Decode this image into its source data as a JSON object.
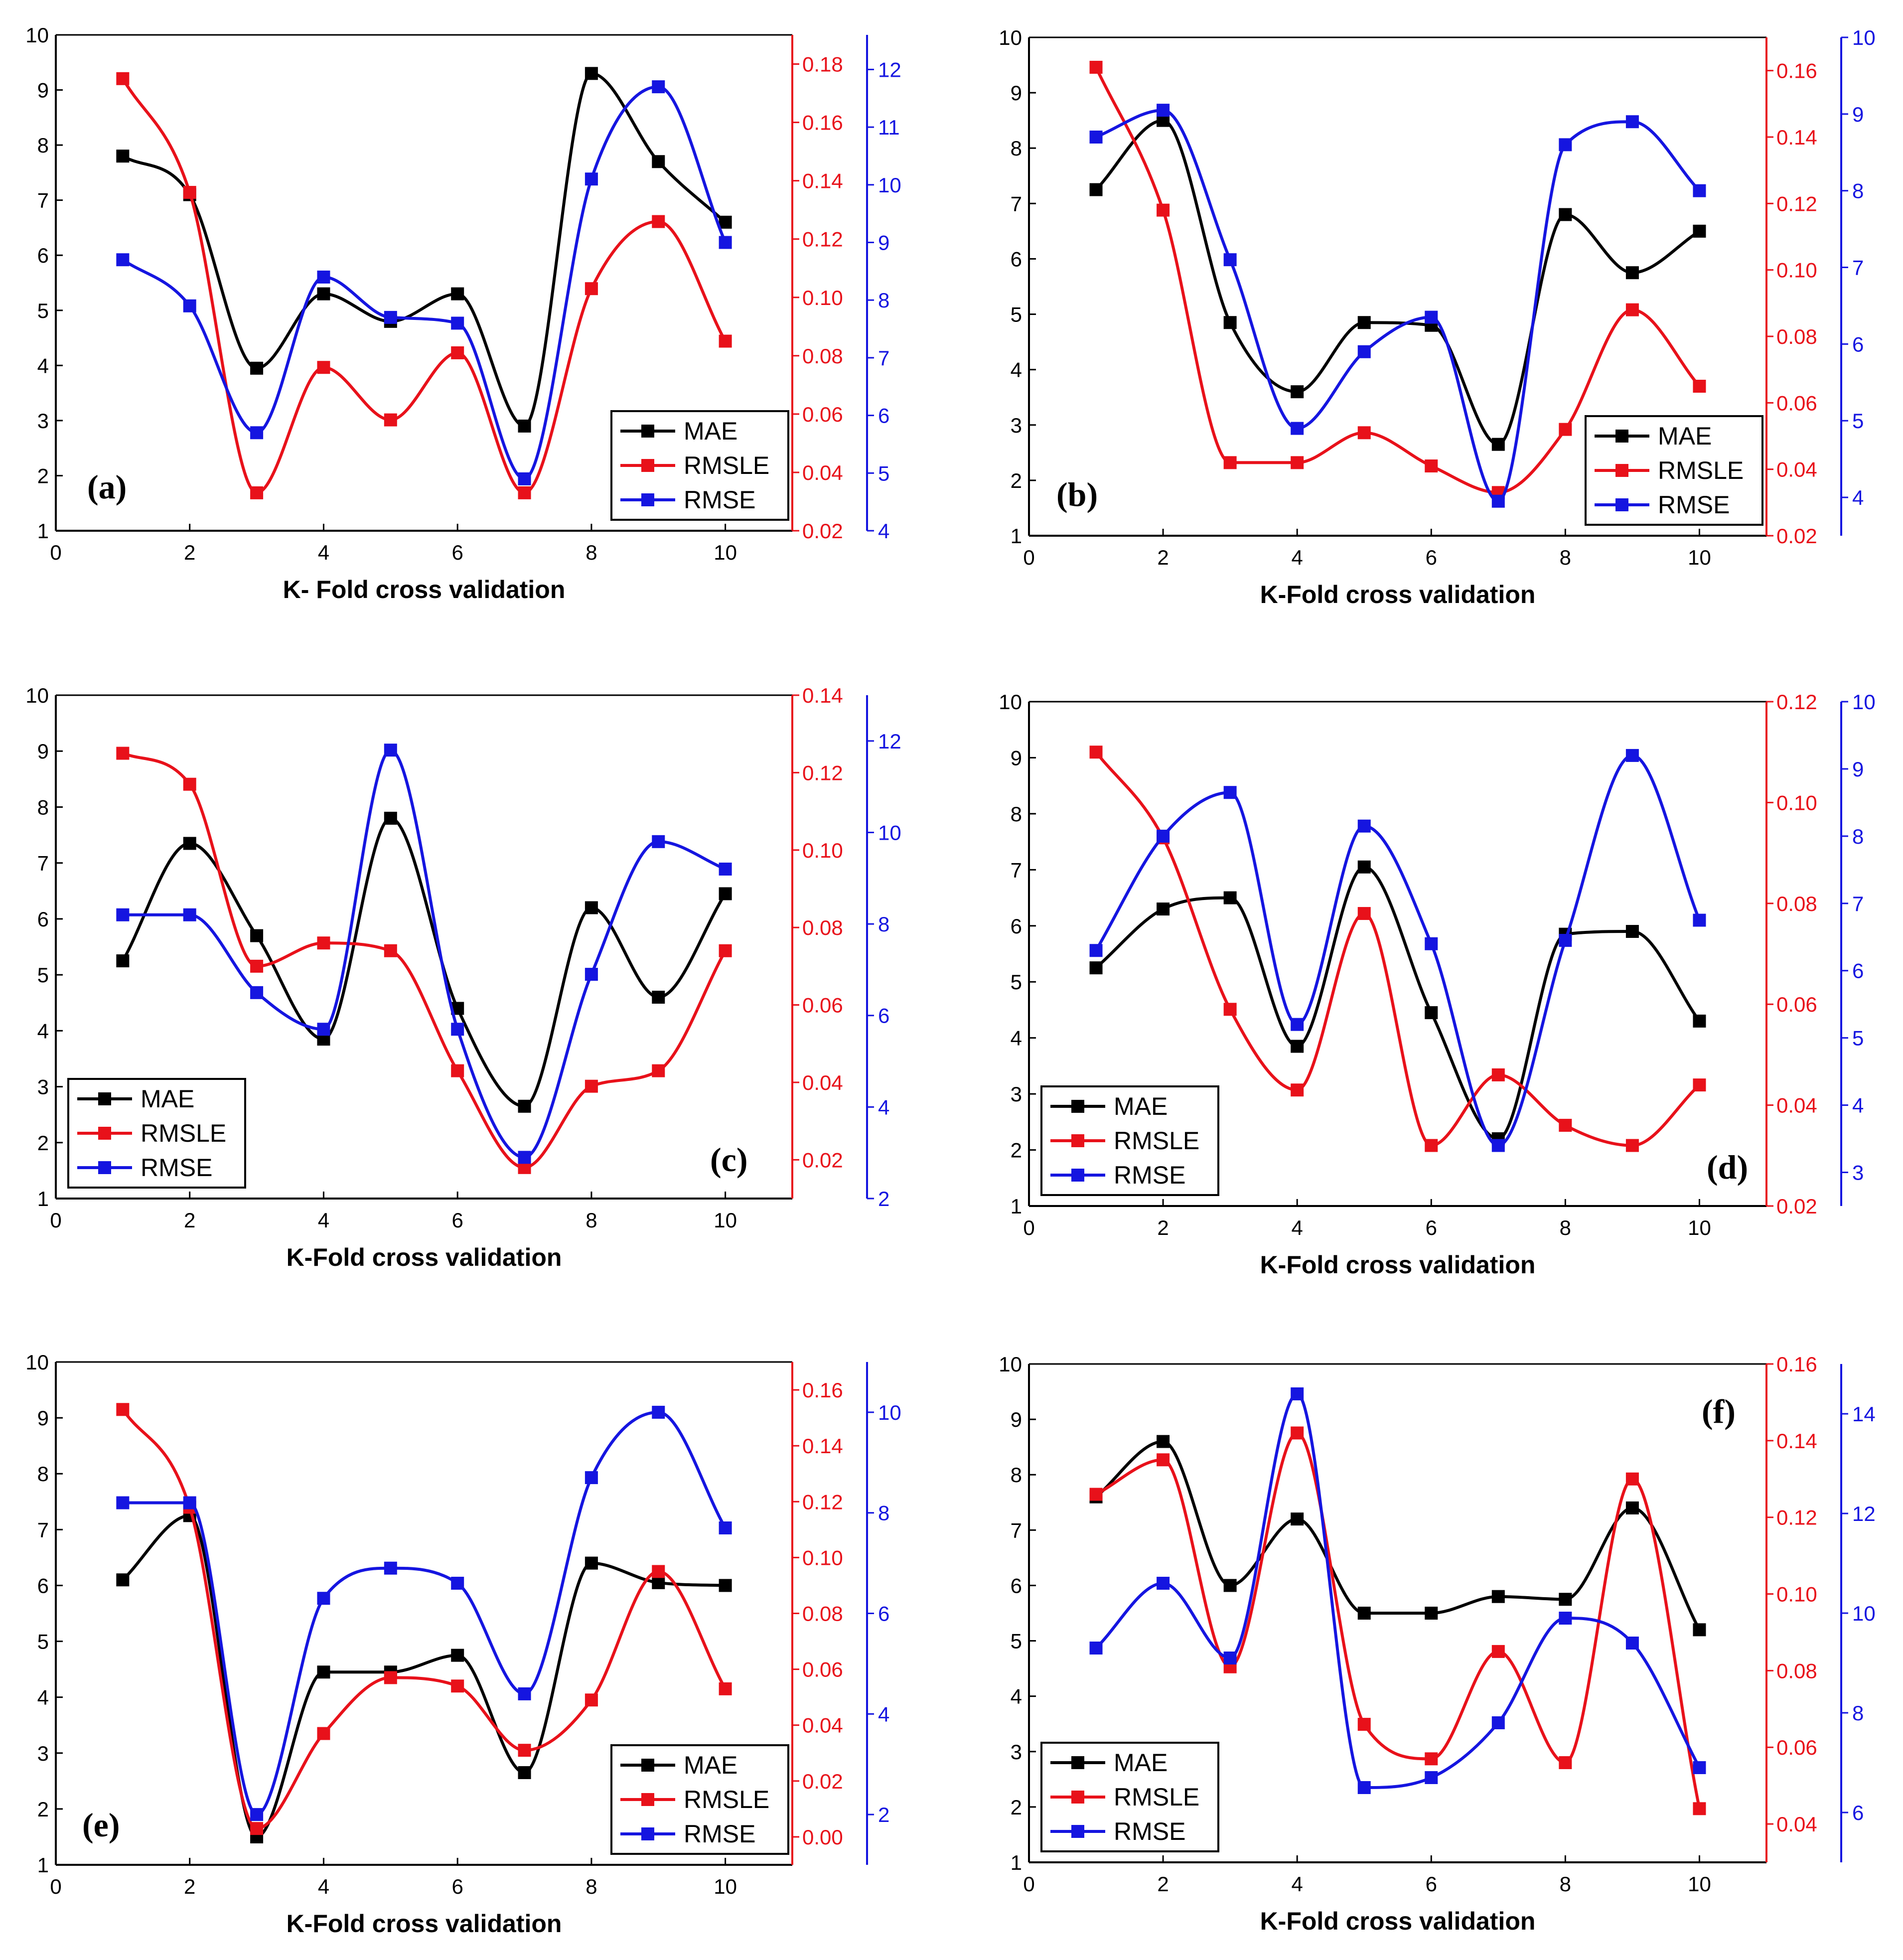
{
  "colors": {
    "MAE": "#000000",
    "RMSLE": "#e8111a",
    "RMSE": "#1515e0"
  },
  "chart_data": [
    {
      "type": "line",
      "panel_label": "(a)",
      "xlabel": "K- Fold cross validation",
      "x": [
        1,
        2,
        3,
        4,
        5,
        6,
        7,
        8,
        9,
        10
      ],
      "x_ticks": [
        "0",
        "2",
        "4",
        "6",
        "8",
        "10"
      ],
      "xlim": [
        0,
        11
      ],
      "legend_position": "bottom-right",
      "axes": {
        "left": {
          "series": "MAE",
          "lim": [
            1,
            10
          ],
          "ticks": [
            "1",
            "2",
            "3",
            "4",
            "5",
            "6",
            "7",
            "8",
            "9",
            "10"
          ]
        },
        "right1": {
          "series": "RMSLE",
          "lim": [
            0.02,
            0.19
          ],
          "ticks": [
            "0.02",
            "0.04",
            "0.06",
            "0.08",
            "0.10",
            "0.12",
            "0.14",
            "0.16",
            "0.18"
          ]
        },
        "right2": {
          "series": "RMSE",
          "lim": [
            4,
            12.6
          ],
          "ticks": [
            "4",
            "5",
            "6",
            "7",
            "8",
            "9",
            "10",
            "11",
            "12"
          ]
        }
      },
      "series": [
        {
          "name": "MAE",
          "axis": "left",
          "values": [
            7.8,
            7.1,
            3.95,
            5.3,
            4.8,
            5.3,
            2.9,
            9.3,
            7.7,
            6.6
          ]
        },
        {
          "name": "RMSLE",
          "axis": "right1",
          "values": [
            0.175,
            0.136,
            0.033,
            0.076,
            0.058,
            0.081,
            0.033,
            0.103,
            0.126,
            0.085
          ]
        },
        {
          "name": "RMSE",
          "axis": "right2",
          "values": [
            8.7,
            7.9,
            5.7,
            8.4,
            7.7,
            7.6,
            4.9,
            10.1,
            11.7,
            9.0
          ]
        }
      ]
    },
    {
      "type": "line",
      "panel_label": "(b)",
      "xlabel": "K-Fold cross validation",
      "x": [
        1,
        2,
        3,
        4,
        5,
        6,
        7,
        8,
        9,
        10
      ],
      "x_ticks": [
        "0",
        "2",
        "4",
        "6",
        "8",
        "10"
      ],
      "xlim": [
        0,
        11
      ],
      "legend_position": "bottom-right",
      "axes": {
        "left": {
          "series": "MAE",
          "lim": [
            1,
            10
          ],
          "ticks": [
            "1",
            "2",
            "3",
            "4",
            "5",
            "6",
            "7",
            "8",
            "9",
            "10"
          ]
        },
        "right1": {
          "series": "RMSLE",
          "lim": [
            0.02,
            0.17
          ],
          "ticks": [
            "0.02",
            "0.04",
            "0.06",
            "0.08",
            "0.10",
            "0.12",
            "0.14",
            "0.16"
          ]
        },
        "right2": {
          "series": "RMSE",
          "lim": [
            3.5,
            10
          ],
          "ticks": [
            "4",
            "5",
            "6",
            "7",
            "8",
            "9",
            "10"
          ]
        }
      },
      "series": [
        {
          "name": "MAE",
          "axis": "left",
          "values": [
            7.25,
            8.5,
            4.85,
            3.6,
            4.85,
            4.8,
            2.65,
            6.8,
            5.75,
            6.5
          ]
        },
        {
          "name": "RMSLE",
          "axis": "right1",
          "values": [
            0.161,
            0.118,
            0.042,
            0.042,
            0.051,
            0.041,
            0.033,
            0.052,
            0.088,
            0.065
          ]
        },
        {
          "name": "RMSE",
          "axis": "right2",
          "values": [
            8.7,
            9.05,
            7.1,
            4.9,
            5.9,
            6.35,
            3.95,
            8.6,
            8.9,
            8.0
          ]
        }
      ]
    },
    {
      "type": "line",
      "panel_label": "(c)",
      "xlabel": "K-Fold cross validation",
      "x": [
        1,
        2,
        3,
        4,
        5,
        6,
        7,
        8,
        9,
        10
      ],
      "x_ticks": [
        "0",
        "2",
        "4",
        "6",
        "8",
        "10"
      ],
      "xlim": [
        0,
        11
      ],
      "legend_position": "bottom-left",
      "axes": {
        "left": {
          "series": "MAE",
          "lim": [
            1,
            10
          ],
          "ticks": [
            "1",
            "2",
            "3",
            "4",
            "5",
            "6",
            "7",
            "8",
            "9",
            "10"
          ]
        },
        "right1": {
          "series": "RMSLE",
          "lim": [
            0.01,
            0.14
          ],
          "ticks": [
            "0.02",
            "0.04",
            "0.06",
            "0.08",
            "0.10",
            "0.12",
            "0.14"
          ]
        },
        "right2": {
          "series": "RMSE",
          "lim": [
            2,
            13
          ],
          "ticks": [
            "2",
            "4",
            "6",
            "8",
            "10",
            "12"
          ]
        }
      },
      "series": [
        {
          "name": "MAE",
          "axis": "left",
          "values": [
            5.25,
            7.35,
            5.7,
            3.85,
            7.8,
            4.4,
            2.65,
            6.2,
            4.6,
            6.45
          ]
        },
        {
          "name": "RMSLE",
          "axis": "right1",
          "values": [
            0.125,
            0.117,
            0.07,
            0.076,
            0.074,
            0.043,
            0.018,
            0.039,
            0.043,
            0.074
          ]
        },
        {
          "name": "RMSE",
          "axis": "right2",
          "values": [
            8.2,
            8.2,
            6.5,
            5.7,
            11.8,
            5.7,
            2.9,
            6.9,
            9.8,
            9.2
          ]
        }
      ]
    },
    {
      "type": "line",
      "panel_label": "(d)",
      "xlabel": "K-Fold cross validation",
      "x": [
        1,
        2,
        3,
        4,
        5,
        6,
        7,
        8,
        9,
        10
      ],
      "x_ticks": [
        "0",
        "2",
        "4",
        "6",
        "8",
        "10"
      ],
      "xlim": [
        0,
        11
      ],
      "legend_position": "bottom-left",
      "axes": {
        "left": {
          "series": "MAE",
          "lim": [
            1,
            10
          ],
          "ticks": [
            "1",
            "2",
            "3",
            "4",
            "5",
            "6",
            "7",
            "8",
            "9",
            "10"
          ]
        },
        "right1": {
          "series": "RMSLE",
          "lim": [
            0.02,
            0.12
          ],
          "ticks": [
            "0.02",
            "0.04",
            "0.06",
            "0.08",
            "0.10",
            "0.12"
          ]
        },
        "right2": {
          "series": "RMSE",
          "lim": [
            2.5,
            10
          ],
          "ticks": [
            "3",
            "4",
            "5",
            "6",
            "7",
            "8",
            "9",
            "10"
          ]
        }
      },
      "series": [
        {
          "name": "MAE",
          "axis": "left",
          "values": [
            5.25,
            6.3,
            6.5,
            3.85,
            7.05,
            4.45,
            2.2,
            5.85,
            5.9,
            4.3
          ]
        },
        {
          "name": "RMSLE",
          "axis": "right1",
          "values": [
            0.11,
            0.093,
            0.059,
            0.043,
            0.078,
            0.032,
            0.046,
            0.036,
            0.032,
            0.044
          ]
        },
        {
          "name": "RMSE",
          "axis": "right2",
          "values": [
            6.3,
            8.0,
            8.65,
            5.2,
            8.15,
            6.4,
            3.4,
            6.45,
            9.2,
            6.75
          ]
        }
      ]
    },
    {
      "type": "line",
      "panel_label": "(e)",
      "xlabel": "K-Fold cross validation",
      "x": [
        1,
        2,
        3,
        4,
        5,
        6,
        7,
        8,
        9,
        10
      ],
      "x_ticks": [
        "0",
        "2",
        "4",
        "6",
        "8",
        "10"
      ],
      "xlim": [
        0,
        11
      ],
      "legend_position": "bottom-right",
      "axes": {
        "left": {
          "series": "MAE",
          "lim": [
            1,
            10
          ],
          "ticks": [
            "1",
            "2",
            "3",
            "4",
            "5",
            "6",
            "7",
            "8",
            "9",
            "10"
          ]
        },
        "right1": {
          "series": "RMSLE",
          "lim": [
            -0.01,
            0.17
          ],
          "ticks": [
            "0.00",
            "0.02",
            "0.04",
            "0.06",
            "0.08",
            "0.10",
            "0.12",
            "0.14",
            "0.16"
          ]
        },
        "right2": {
          "series": "RMSE",
          "lim": [
            1,
            11
          ],
          "ticks": [
            "2",
            "4",
            "6",
            "8",
            "10"
          ]
        }
      },
      "series": [
        {
          "name": "MAE",
          "axis": "left",
          "values": [
            6.1,
            7.25,
            1.5,
            4.45,
            4.45,
            4.75,
            2.65,
            6.4,
            6.05,
            6.0
          ]
        },
        {
          "name": "RMSLE",
          "axis": "right1",
          "values": [
            0.153,
            0.118,
            0.003,
            0.037,
            0.057,
            0.054,
            0.031,
            0.049,
            0.095,
            0.053
          ]
        },
        {
          "name": "RMSE",
          "axis": "right2",
          "values": [
            8.2,
            8.2,
            2.0,
            6.3,
            6.9,
            6.6,
            4.4,
            8.7,
            10.0,
            7.7
          ]
        }
      ]
    },
    {
      "type": "line",
      "panel_label": "(f)",
      "xlabel": "K-Fold cross validation",
      "x": [
        1,
        2,
        3,
        4,
        5,
        6,
        7,
        8,
        9,
        10
      ],
      "x_ticks": [
        "0",
        "2",
        "4",
        "6",
        "8",
        "10"
      ],
      "xlim": [
        0,
        11
      ],
      "legend_position": "bottom-left",
      "axes": {
        "left": {
          "series": "MAE",
          "lim": [
            1,
            10
          ],
          "ticks": [
            "1",
            "2",
            "3",
            "4",
            "5",
            "6",
            "7",
            "8",
            "9",
            "10"
          ]
        },
        "right1": {
          "series": "RMSLE",
          "lim": [
            0.03,
            0.16
          ],
          "ticks": [
            "0.04",
            "0.06",
            "0.08",
            "0.10",
            "0.12",
            "0.14",
            "0.16"
          ]
        },
        "right2": {
          "series": "RMSE",
          "lim": [
            5,
            15
          ],
          "ticks": [
            "6",
            "8",
            "10",
            "12",
            "14"
          ]
        }
      },
      "series": [
        {
          "name": "MAE",
          "axis": "left",
          "values": [
            7.6,
            8.6,
            6.0,
            7.2,
            5.5,
            5.5,
            5.8,
            5.75,
            7.4,
            5.2
          ]
        },
        {
          "name": "RMSLE",
          "axis": "right1",
          "values": [
            0.126,
            0.135,
            0.081,
            0.142,
            0.066,
            0.057,
            0.085,
            0.056,
            0.13,
            0.044
          ]
        },
        {
          "name": "RMSE",
          "axis": "right2",
          "values": [
            9.3,
            10.6,
            9.1,
            14.4,
            6.5,
            6.7,
            7.8,
            9.9,
            9.4,
            6.9
          ]
        }
      ]
    }
  ]
}
